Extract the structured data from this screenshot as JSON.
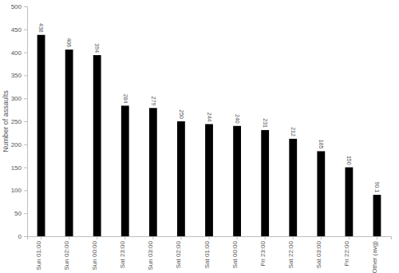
{
  "chart_data": {
    "type": "bar",
    "y_label": "Number of assaults",
    "categories": [
      "Sun 01:00",
      "Sun 02:00",
      "Sun 00:00",
      "Sat 23:00",
      "Sun 03:00",
      "Sat 02:00",
      "Sat 01:00",
      "Sat 00:00",
      "Fri 23:00",
      "Sat 22:00",
      "Sat 03:00",
      "Fri 22:00",
      "Other (avg)"
    ],
    "values": [
      438,
      406,
      394,
      284,
      279,
      250,
      244,
      240,
      231,
      212,
      185,
      150,
      90.1
    ],
    "color": "#000000",
    "ylim": [
      0,
      500
    ],
    "yticks": [
      0,
      50,
      100,
      150,
      200,
      250,
      300,
      350,
      400,
      450,
      500
    ],
    "grid": false,
    "data_labels": true
  }
}
